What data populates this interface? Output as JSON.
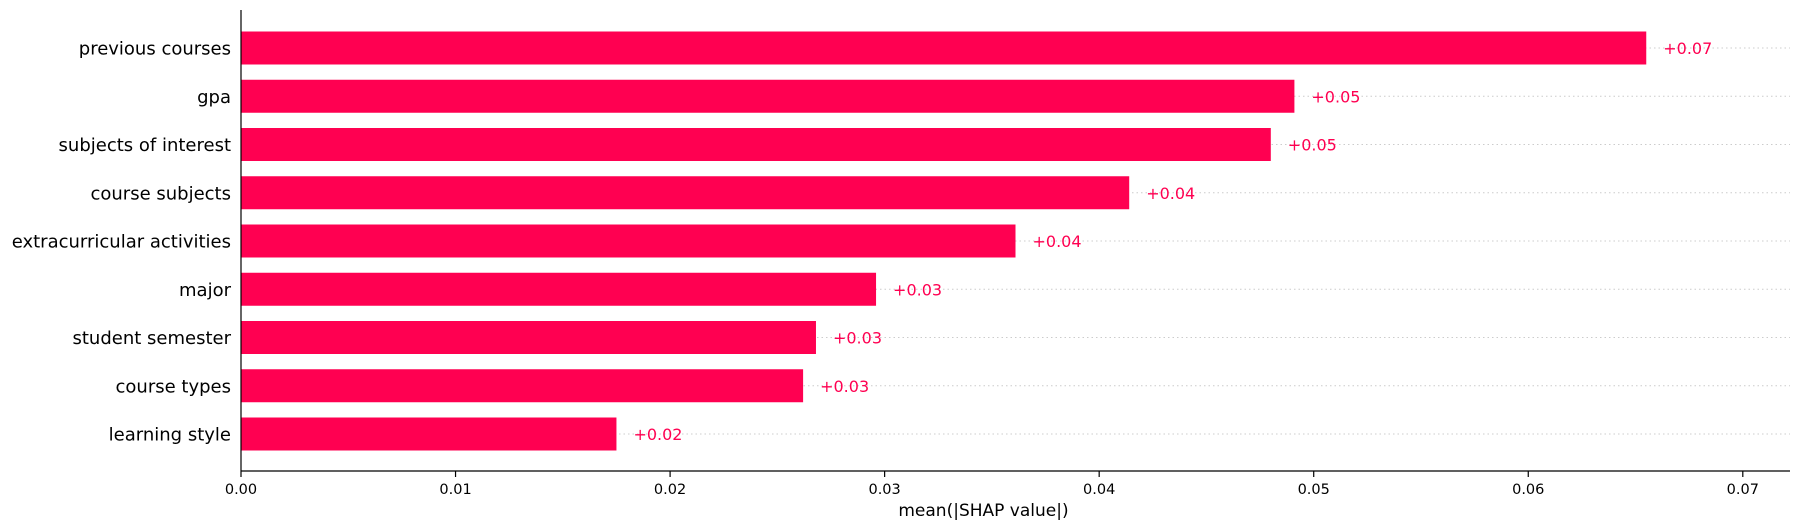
{
  "chart_data": {
    "type": "bar",
    "orientation": "horizontal",
    "categories": [
      "previous courses",
      "gpa",
      "subjects of interest",
      "course subjects",
      "extracurricular activities",
      "major",
      "student semester",
      "course types",
      "learning style"
    ],
    "values": [
      0.0655,
      0.0491,
      0.048,
      0.0414,
      0.0361,
      0.0296,
      0.0268,
      0.0262,
      0.0175
    ],
    "value_labels": [
      "+0.07",
      "+0.05",
      "+0.05",
      "+0.04",
      "+0.04",
      "+0.03",
      "+0.03",
      "+0.03",
      "+0.02"
    ],
    "title": "",
    "xlabel": "mean(|SHAP value|)",
    "ylabel": "",
    "xlim": [
      0,
      0.0722
    ],
    "xticks": [
      0,
      0.01,
      0.02,
      0.03,
      0.04,
      0.05,
      0.06,
      0.07
    ],
    "xtick_labels": [
      "0.00",
      "0.01",
      "0.02",
      "0.03",
      "0.04",
      "0.05",
      "0.06",
      "0.07"
    ],
    "grid": "dotted row guides",
    "bar_color": "#ff0051",
    "label_color": "#ff0051"
  }
}
